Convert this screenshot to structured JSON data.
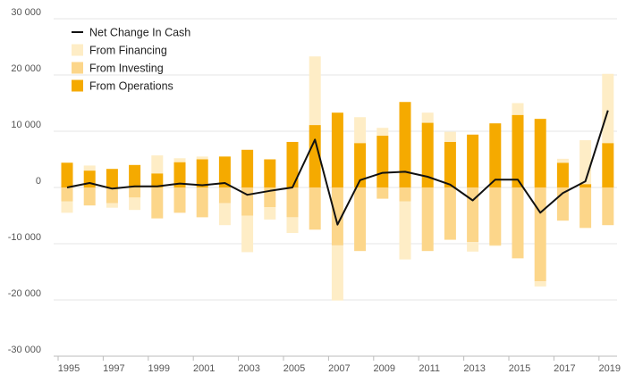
{
  "chart_data": {
    "type": "bar",
    "subtype": "stacked bar with line overlay",
    "years": [
      1995,
      1996,
      1997,
      1998,
      1999,
      2000,
      2001,
      2002,
      2003,
      2004,
      2005,
      2006,
      2007,
      2008,
      2009,
      2010,
      2011,
      2012,
      2013,
      2014,
      2015,
      2016,
      2017,
      2018,
      2019
    ],
    "x_tick_labels": [
      "1995",
      "1997",
      "1999",
      "2001",
      "2003",
      "2005",
      "2007",
      "2009",
      "2011",
      "2013",
      "2015",
      "2017",
      "2019"
    ],
    "y_tick_labels": [
      "30 000",
      "20 000",
      "10 000",
      "0",
      "-10 000",
      "-20 000",
      "-30 000"
    ],
    "y_ticks": [
      30000,
      20000,
      10000,
      0,
      -10000,
      -20000,
      -30000
    ],
    "ylim": [
      -30000,
      30000
    ],
    "grid": "horizontal",
    "legend_position": "top-left",
    "series": [
      {
        "name": "From Operations",
        "kind": "bar",
        "color": "#f5aa00",
        "values": [
          4400,
          3000,
          3300,
          4000,
          2500,
          4500,
          5000,
          5500,
          6700,
          5000,
          8100,
          11100,
          13300,
          7900,
          9200,
          15200,
          11500,
          8100,
          9400,
          11400,
          12900,
          12200,
          4400,
          600,
          7900
        ]
      },
      {
        "name": "From Investing",
        "kind": "bar",
        "color": "#fcd68a",
        "values": [
          -2500,
          -3200,
          -2800,
          -1800,
          -5500,
          -4500,
          -5300,
          -2800,
          -5000,
          -3500,
          -5300,
          -7500,
          -10300,
          -11300,
          -2000,
          -2500,
          -11300,
          -9300,
          -9700,
          -10300,
          -12600,
          -16700,
          -5900,
          -7200,
          -6700
        ]
      },
      {
        "name": "From Financing",
        "kind": "bar",
        "color": "#feedc6",
        "values": [
          -2000,
          900,
          -800,
          -2200,
          3200,
          700,
          500,
          -3900,
          -6500,
          -2200,
          -2800,
          12200,
          -9800,
          4600,
          1400,
          -10300,
          1800,
          1800,
          -1700,
          -100,
          2100,
          -900,
          700,
          7800,
          12300
        ]
      },
      {
        "name": "Net Change In Cash",
        "kind": "line",
        "color": "#111111",
        "values": [
          0,
          800,
          -200,
          200,
          200,
          700,
          400,
          800,
          -1300,
          -600,
          0,
          8500,
          -6600,
          1300,
          2600,
          2800,
          1900,
          500,
          -2300,
          1400,
          1400,
          -4500,
          -1000,
          1100,
          13700
        ]
      }
    ]
  }
}
